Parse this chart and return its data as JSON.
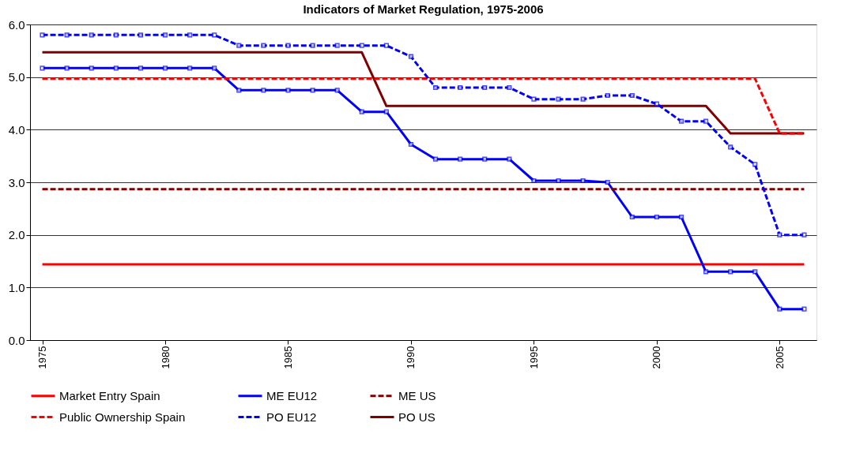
{
  "chart_data": {
    "type": "line",
    "title": "Indicators of Market Regulation, 1975-2006",
    "x": [
      1975,
      1976,
      1977,
      1978,
      1979,
      1980,
      1981,
      1982,
      1983,
      1984,
      1985,
      1986,
      1987,
      1988,
      1989,
      1990,
      1991,
      1992,
      1993,
      1994,
      1995,
      1996,
      1997,
      1998,
      1999,
      2000,
      2001,
      2002,
      2003,
      2004,
      2005,
      2006
    ],
    "xlim": [
      1974.5,
      2006.5
    ],
    "xticks": [
      1975,
      1980,
      1985,
      1990,
      1995,
      2000,
      2005
    ],
    "ylim": [
      0,
      6
    ],
    "yticks": [
      {
        "value": 0,
        "label": "0.0"
      },
      {
        "value": 1,
        "label": "1.0"
      },
      {
        "value": 2,
        "label": "2.0"
      },
      {
        "value": 3,
        "label": "3.0"
      },
      {
        "value": 4,
        "label": "4.0"
      },
      {
        "value": 5,
        "label": "5.0"
      },
      {
        "value": 6,
        "label": "6.0"
      }
    ],
    "grid": "y",
    "legend": "bottom",
    "series": [
      {
        "name": "Market Entry Spain",
        "color": "#ff0000",
        "line_style": "solid",
        "marker": "none",
        "values": [
          1.44,
          1.44,
          1.44,
          1.44,
          1.44,
          1.44,
          1.44,
          1.44,
          1.44,
          1.44,
          1.44,
          1.44,
          1.44,
          1.44,
          1.44,
          1.44,
          1.44,
          1.44,
          1.44,
          1.44,
          1.44,
          1.44,
          1.44,
          1.44,
          1.44,
          1.44,
          1.44,
          1.44,
          1.44,
          1.44,
          1.44,
          1.44
        ]
      },
      {
        "name": "ME EU12",
        "color": "#0000ff",
        "line_style": "solid",
        "marker": "square",
        "values": [
          5.17,
          5.17,
          5.17,
          5.17,
          5.17,
          5.17,
          5.17,
          5.17,
          4.75,
          4.75,
          4.75,
          4.75,
          4.75,
          4.34,
          4.34,
          3.72,
          3.44,
          3.44,
          3.44,
          3.44,
          3.03,
          3.03,
          3.03,
          3.0,
          2.34,
          2.34,
          2.34,
          1.3,
          1.3,
          1.3,
          0.59,
          0.59
        ]
      },
      {
        "name": "ME US",
        "color": "#800000",
        "line_style": "dashed",
        "marker": "none",
        "values": [
          2.87,
          2.87,
          2.87,
          2.87,
          2.87,
          2.87,
          2.87,
          2.87,
          2.87,
          2.87,
          2.87,
          2.87,
          2.87,
          2.87,
          2.87,
          2.87,
          2.87,
          2.87,
          2.87,
          2.87,
          2.87,
          2.87,
          2.87,
          2.87,
          2.87,
          2.87,
          2.87,
          2.87,
          2.87,
          2.87,
          2.87,
          2.87
        ]
      },
      {
        "name": "Public Ownership Spain",
        "color": "#ff0000",
        "line_style": "dashed",
        "marker": "none",
        "values": [
          4.97,
          4.97,
          4.97,
          4.97,
          4.97,
          4.97,
          4.97,
          4.97,
          4.97,
          4.97,
          4.97,
          4.97,
          4.97,
          4.97,
          4.97,
          4.97,
          4.97,
          4.97,
          4.97,
          4.97,
          4.97,
          4.97,
          4.97,
          4.97,
          4.97,
          4.97,
          4.97,
          4.97,
          4.97,
          4.97,
          3.93,
          3.93
        ]
      },
      {
        "name": "PO EU12",
        "color": "#0000ff",
        "line_style": "dashed",
        "marker": "square",
        "values": [
          5.8,
          5.8,
          5.8,
          5.8,
          5.8,
          5.8,
          5.8,
          5.8,
          5.6,
          5.6,
          5.6,
          5.6,
          5.6,
          5.6,
          5.6,
          5.39,
          4.8,
          4.8,
          4.8,
          4.8,
          4.58,
          4.58,
          4.58,
          4.65,
          4.65,
          4.49,
          4.16,
          4.16,
          3.67,
          3.34,
          2.0,
          2.0
        ]
      },
      {
        "name": "PO US",
        "color": "#800000",
        "line_style": "solid",
        "marker": "none",
        "values": [
          5.47,
          5.47,
          5.47,
          5.47,
          5.47,
          5.47,
          5.47,
          5.47,
          5.47,
          5.47,
          5.47,
          5.47,
          5.47,
          5.47,
          4.45,
          4.45,
          4.45,
          4.45,
          4.45,
          4.45,
          4.45,
          4.45,
          4.45,
          4.45,
          4.45,
          4.45,
          4.45,
          4.45,
          3.93,
          3.93,
          3.93,
          3.93
        ]
      }
    ]
  }
}
